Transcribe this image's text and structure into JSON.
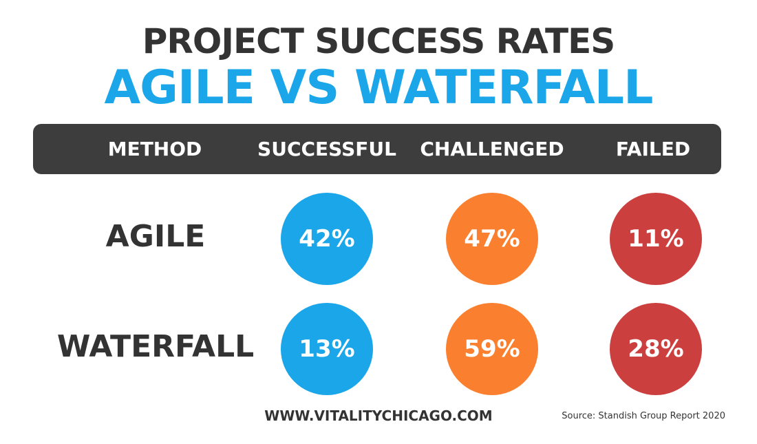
{
  "title": {
    "line1": "PROJECT SUCCESS RATES",
    "line2": "AGILE VS WATERFALL"
  },
  "colors": {
    "title_dark": "#333333",
    "title_accent": "#1aa6e8",
    "header_bar": "#3d3d3d",
    "successful": "#1aa6e8",
    "challenged": "#fa7f2e",
    "failed": "#cc3f3f"
  },
  "chart_data": {
    "type": "table",
    "columns": [
      "METHOD",
      "SUCCESSFUL",
      "CHALLENGED",
      "FAILED"
    ],
    "rows": [
      {
        "method": "AGILE",
        "values": [
          42,
          47,
          11
        ],
        "labels": [
          "42%",
          "47%",
          "11%"
        ]
      },
      {
        "method": "WATERFALL",
        "values": [
          13,
          59,
          28
        ],
        "labels": [
          "13%",
          "59%",
          "28%"
        ]
      }
    ],
    "unit": "%"
  },
  "footer": {
    "website": "WWW.VITALITYCHICAGO.COM",
    "source": "Source: Standish Group Report 2020"
  }
}
